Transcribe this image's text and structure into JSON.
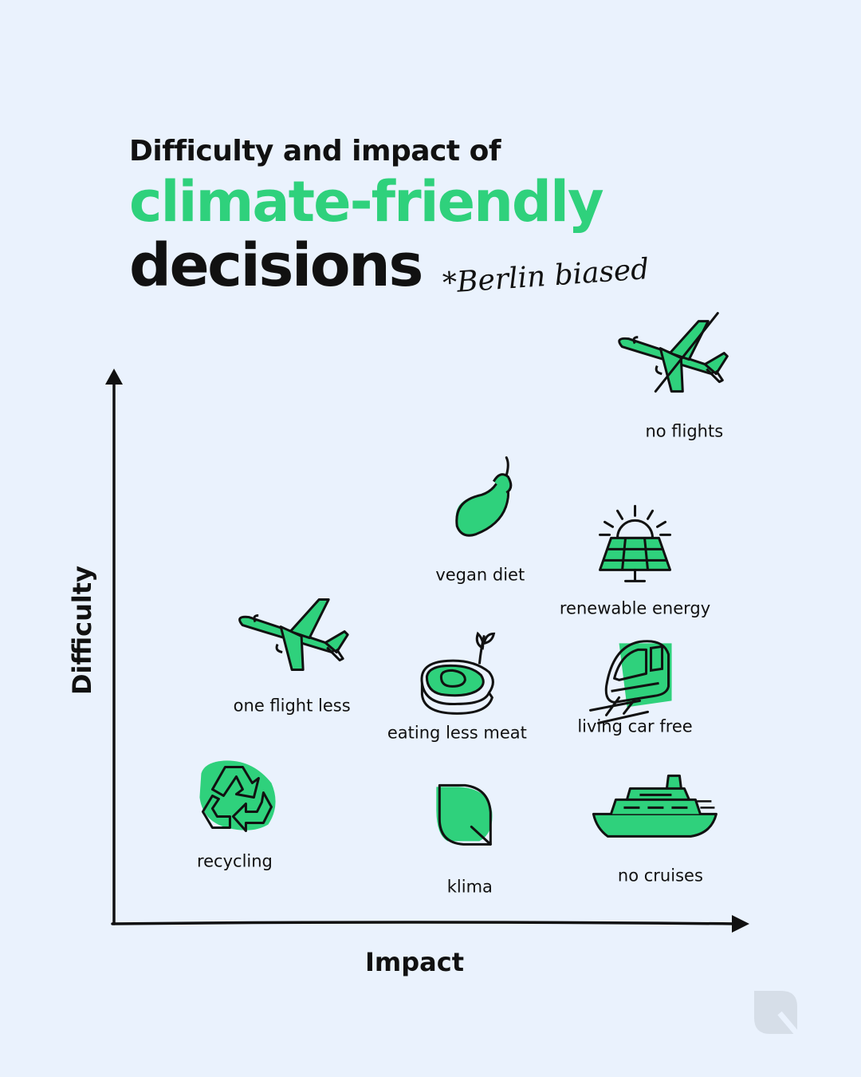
{
  "title": {
    "line1": "Difficulty and impact of",
    "line2": "climate-friendly",
    "line3": "decisions",
    "note": "*Berlin biased"
  },
  "colors": {
    "accent": "#2FD17C",
    "ink": "#111111",
    "background": "#EAF2FD",
    "logo": "#D6DEE8"
  },
  "logo_icon": "leaf-square-logo-icon",
  "chart_data": {
    "type": "scatter",
    "xlabel": "Impact",
    "ylabel": "Difficulty",
    "xlim": [
      0,
      10
    ],
    "ylim": [
      0,
      10
    ],
    "grid": false,
    "points": [
      {
        "label": "no flights",
        "icon": "crossed-airplane-icon",
        "x": 9.0,
        "y": 9.0
      },
      {
        "label": "vegan diet",
        "icon": "eggplant-icon",
        "x": 5.8,
        "y": 6.3
      },
      {
        "label": "renewable energy",
        "icon": "solar-panel-icon",
        "x": 8.2,
        "y": 5.8
      },
      {
        "label": "one flight less",
        "icon": "airplane-icon",
        "x": 2.8,
        "y": 3.9
      },
      {
        "label": "eating less meat",
        "icon": "steak-icon",
        "x": 5.4,
        "y": 3.4
      },
      {
        "label": "living car free",
        "icon": "train-icon",
        "x": 8.2,
        "y": 3.4
      },
      {
        "label": "recycling",
        "icon": "recycle-icon",
        "x": 1.9,
        "y": 1.2
      },
      {
        "label": "klima",
        "icon": "leaf-icon",
        "x": 5.6,
        "y": 0.9
      },
      {
        "label": "no cruises",
        "icon": "cruise-ship-icon",
        "x": 8.6,
        "y": 1.0
      }
    ]
  }
}
